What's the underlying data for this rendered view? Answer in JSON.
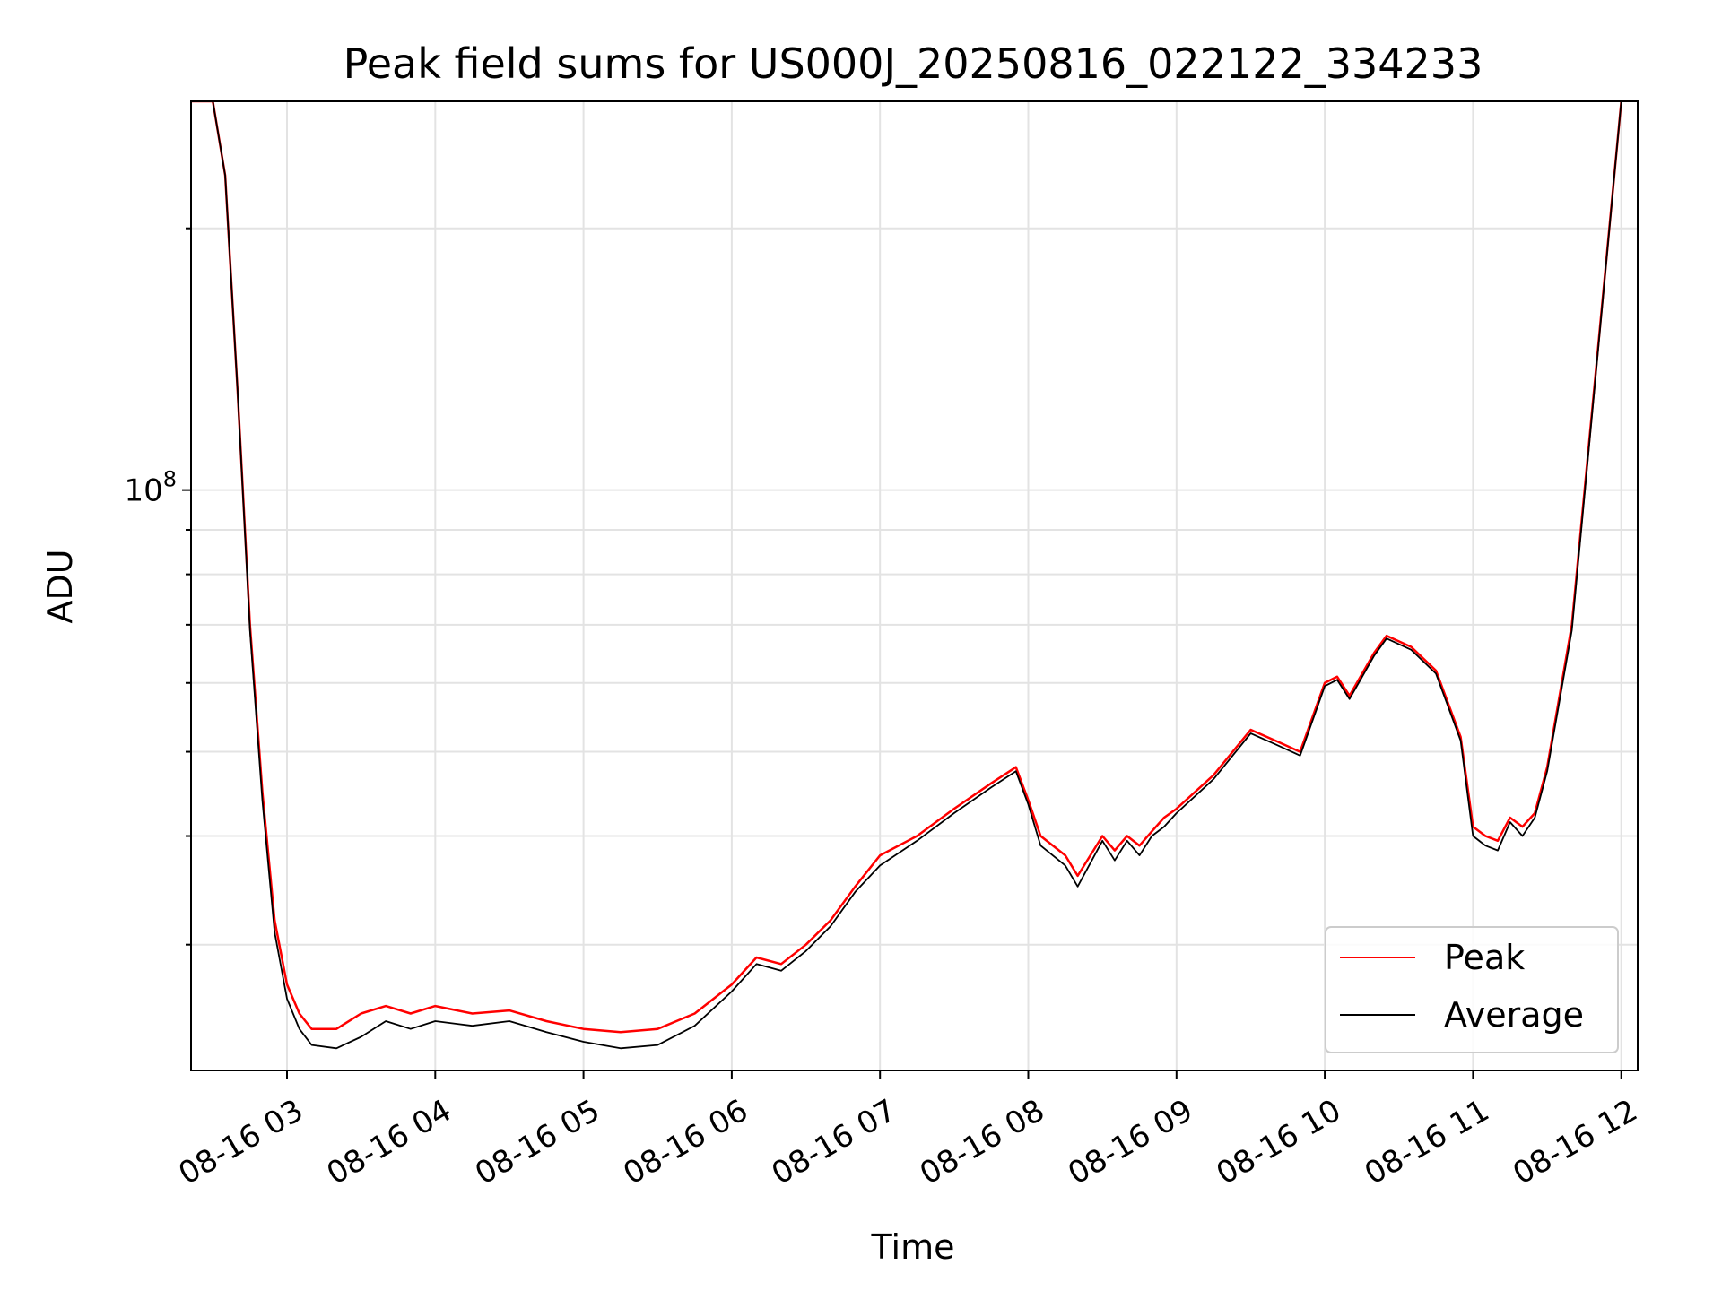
{
  "chart_data": {
    "type": "line",
    "title": "Peak field sums for US000J_20250816_022122_334233",
    "xlabel": "Time",
    "ylabel": "ADU",
    "yscale": "log",
    "ylim": [
      21500000,
      280000000
    ],
    "xlim": [
      "08-16 02:21",
      "08-16 12:01"
    ],
    "x_ticks": [
      "08-16 03",
      "08-16 04",
      "08-16 05",
      "08-16 06",
      "08-16 07",
      "08-16 08",
      "08-16 09",
      "08-16 10",
      "08-16 11",
      "08-16 12"
    ],
    "y_ticks": [
      {
        "value": 100000000,
        "label": "10",
        "exponent": "8"
      }
    ],
    "y_minor_ticks": [
      30000000,
      40000000,
      50000000,
      60000000,
      70000000,
      80000000,
      90000000,
      200000000
    ],
    "grid": true,
    "legend_position": "lower-right",
    "series": [
      {
        "name": "Peak",
        "color": "#ff0000",
        "x": [
          "08-16 02:21",
          "08-16 02:30",
          "08-16 02:35",
          "08-16 02:40",
          "08-16 02:45",
          "08-16 02:50",
          "08-16 02:55",
          "08-16 03:00",
          "08-16 03:05",
          "08-16 03:10",
          "08-16 03:20",
          "08-16 03:30",
          "08-16 03:40",
          "08-16 03:50",
          "08-16 04:00",
          "08-16 04:15",
          "08-16 04:30",
          "08-16 04:45",
          "08-16 05:00",
          "08-16 05:15",
          "08-16 05:30",
          "08-16 05:45",
          "08-16 06:00",
          "08-16 06:10",
          "08-16 06:20",
          "08-16 06:30",
          "08-16 06:40",
          "08-16 06:50",
          "08-16 07:00",
          "08-16 07:15",
          "08-16 07:30",
          "08-16 07:45",
          "08-16 07:55",
          "08-16 08:00",
          "08-16 08:05",
          "08-16 08:15",
          "08-16 08:20",
          "08-16 08:30",
          "08-16 08:35",
          "08-16 08:40",
          "08-16 08:45",
          "08-16 08:50",
          "08-16 08:55",
          "08-16 09:00",
          "08-16 09:15",
          "08-16 09:30",
          "08-16 09:40",
          "08-16 09:50",
          "08-16 10:00",
          "08-16 10:05",
          "08-16 10:10",
          "08-16 10:20",
          "08-16 10:25",
          "08-16 10:35",
          "08-16 10:45",
          "08-16 10:55",
          "08-16 11:00",
          "08-16 11:05",
          "08-16 11:10",
          "08-16 11:15",
          "08-16 11:20",
          "08-16 11:25",
          "08-16 11:30",
          "08-16 11:40",
          "08-16 11:50",
          "08-16 12:00"
        ],
        "values": [
          280000000,
          280000000,
          230000000,
          130000000,
          70000000,
          45000000,
          32000000,
          27000000,
          25000000,
          24000000,
          24000000,
          25000000,
          25500000,
          25000000,
          25500000,
          25000000,
          25200000,
          24500000,
          24000000,
          23800000,
          24000000,
          25000000,
          27000000,
          29000000,
          28500000,
          30000000,
          32000000,
          35000000,
          38000000,
          40000000,
          43000000,
          46000000,
          48000000,
          44000000,
          40000000,
          38000000,
          36000000,
          40000000,
          38500000,
          40000000,
          39000000,
          40500000,
          42000000,
          43000000,
          47000000,
          53000000,
          51500000,
          50000000,
          60000000,
          61000000,
          58000000,
          65000000,
          68000000,
          66000000,
          62000000,
          52000000,
          41000000,
          40000000,
          39500000,
          42000000,
          41000000,
          42500000,
          48000000,
          70000000,
          140000000,
          280000000
        ]
      },
      {
        "name": "Average",
        "color": "#000000",
        "x": [
          "08-16 02:21",
          "08-16 02:30",
          "08-16 02:35",
          "08-16 02:40",
          "08-16 02:45",
          "08-16 02:50",
          "08-16 02:55",
          "08-16 03:00",
          "08-16 03:05",
          "08-16 03:10",
          "08-16 03:20",
          "08-16 03:30",
          "08-16 03:40",
          "08-16 03:50",
          "08-16 04:00",
          "08-16 04:15",
          "08-16 04:30",
          "08-16 04:45",
          "08-16 05:00",
          "08-16 05:15",
          "08-16 05:30",
          "08-16 05:45",
          "08-16 06:00",
          "08-16 06:10",
          "08-16 06:20",
          "08-16 06:30",
          "08-16 06:40",
          "08-16 06:50",
          "08-16 07:00",
          "08-16 07:15",
          "08-16 07:30",
          "08-16 07:45",
          "08-16 07:55",
          "08-16 08:00",
          "08-16 08:05",
          "08-16 08:15",
          "08-16 08:20",
          "08-16 08:30",
          "08-16 08:35",
          "08-16 08:40",
          "08-16 08:45",
          "08-16 08:50",
          "08-16 08:55",
          "08-16 09:00",
          "08-16 09:15",
          "08-16 09:30",
          "08-16 09:40",
          "08-16 09:50",
          "08-16 10:00",
          "08-16 10:05",
          "08-16 10:10",
          "08-16 10:20",
          "08-16 10:25",
          "08-16 10:35",
          "08-16 10:45",
          "08-16 10:55",
          "08-16 11:00",
          "08-16 11:05",
          "08-16 11:10",
          "08-16 11:15",
          "08-16 11:20",
          "08-16 11:25",
          "08-16 11:30",
          "08-16 11:40",
          "08-16 11:50",
          "08-16 12:00"
        ],
        "values": [
          280000000,
          280000000,
          230000000,
          130000000,
          69000000,
          44000000,
          31000000,
          26000000,
          24000000,
          23000000,
          22800000,
          23500000,
          24500000,
          24000000,
          24500000,
          24200000,
          24500000,
          23800000,
          23200000,
          22800000,
          23000000,
          24200000,
          26500000,
          28500000,
          28000000,
          29500000,
          31500000,
          34500000,
          37000000,
          39500000,
          42500000,
          45500000,
          47500000,
          43500000,
          39000000,
          37000000,
          35000000,
          39500000,
          37500000,
          39500000,
          38000000,
          40000000,
          41000000,
          42500000,
          46500000,
          52500000,
          51000000,
          49500000,
          59500000,
          60500000,
          57500000,
          64500000,
          67500000,
          65500000,
          61500000,
          51500000,
          40000000,
          39000000,
          38500000,
          41500000,
          40000000,
          42000000,
          47500000,
          69000000,
          139000000,
          280000000
        ]
      }
    ]
  }
}
